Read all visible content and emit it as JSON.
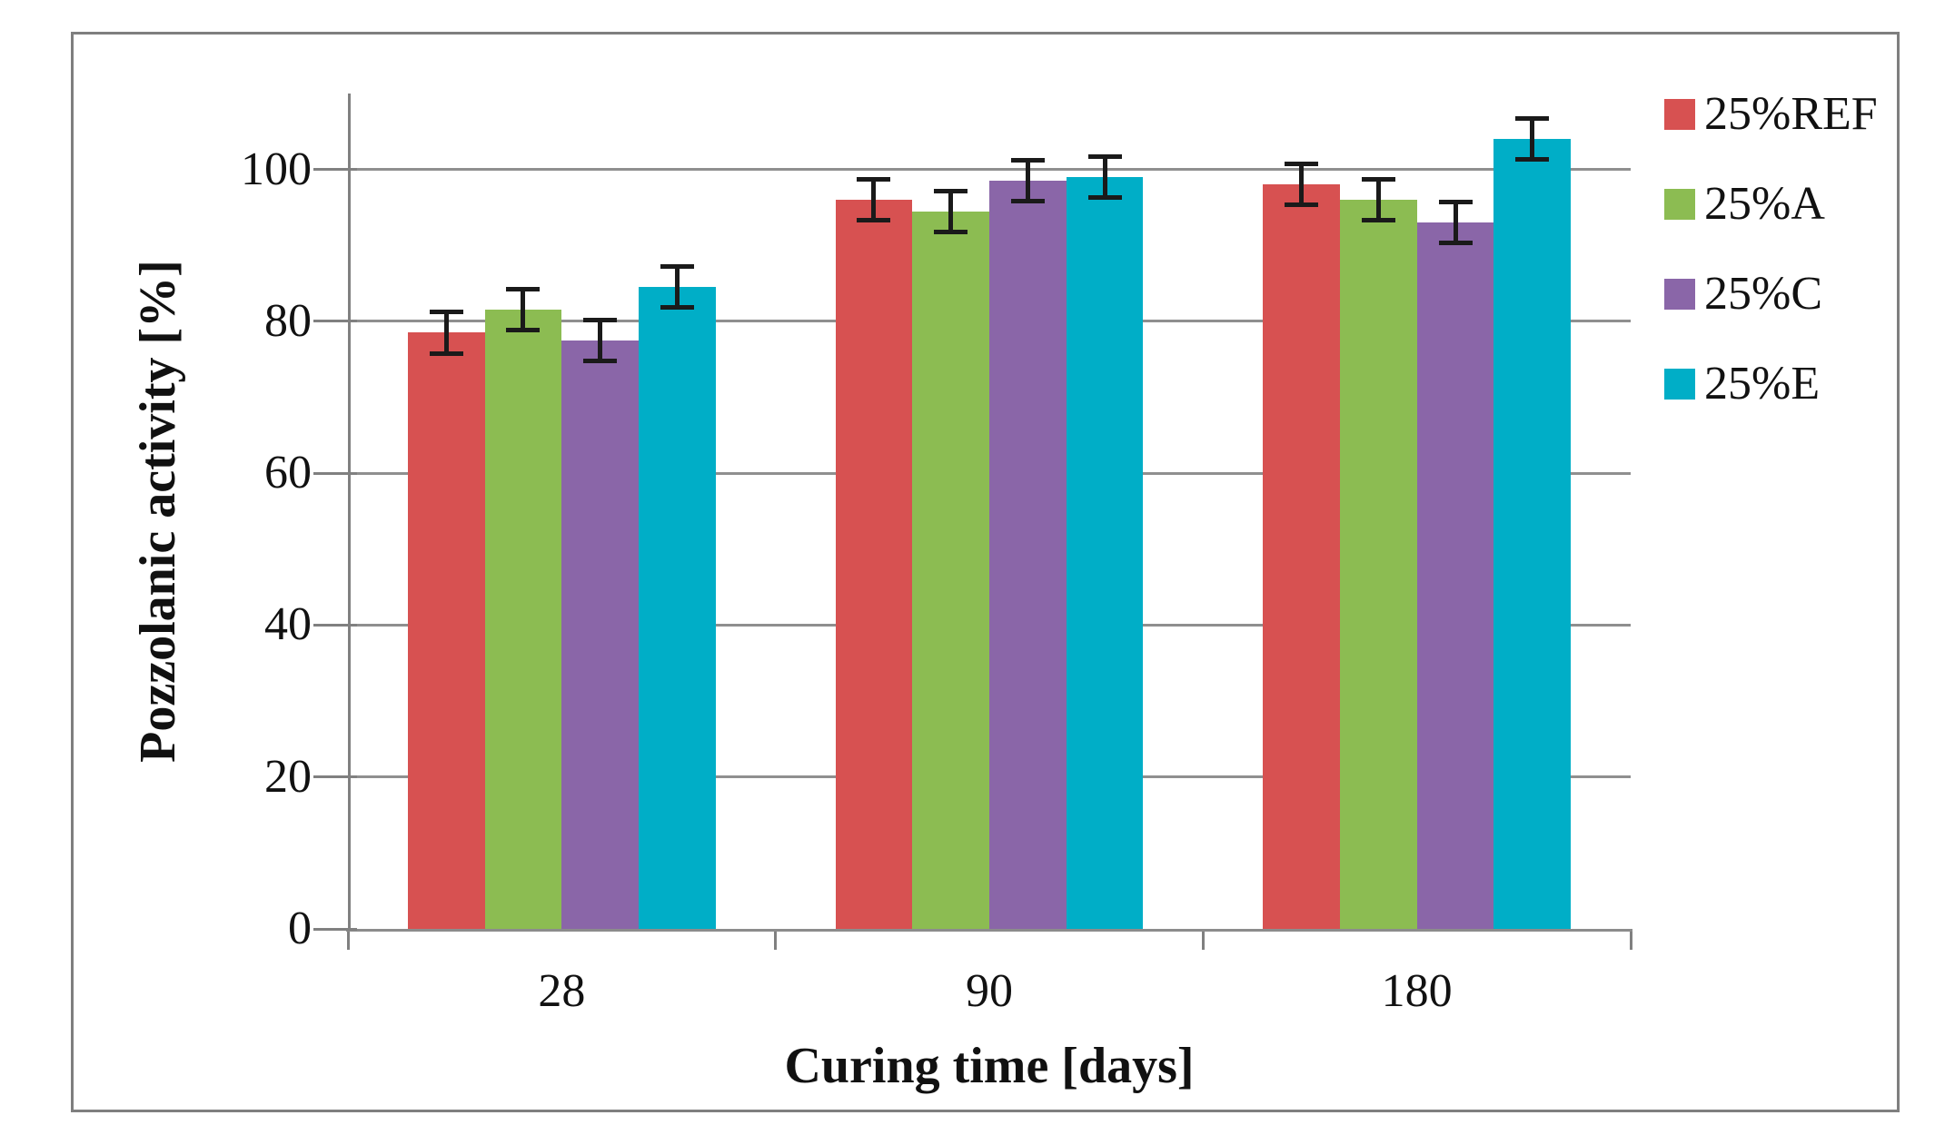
{
  "figure": {
    "kind": "grouped-bar-chart-figure",
    "frame_color": "#7f7f7f",
    "background": "#ffffff"
  },
  "chart_data": {
    "type": "bar",
    "title": "",
    "xlabel": "Curing time [days]",
    "ylabel": "Pozzolanic activity [%]",
    "categories": [
      "28",
      "90",
      "180"
    ],
    "series": [
      {
        "name": "25%REF",
        "color": "#d75151",
        "values": [
          78.5,
          96.0,
          98.0
        ],
        "errors": [
          3.0,
          3.0,
          3.0
        ]
      },
      {
        "name": "25%A",
        "color": "#8cbc52",
        "values": [
          81.5,
          94.5,
          96.0
        ],
        "errors": [
          3.0,
          3.0,
          3.0
        ]
      },
      {
        "name": "25%C",
        "color": "#8a66a8",
        "values": [
          77.5,
          98.5,
          93.0
        ],
        "errors": [
          3.0,
          3.0,
          3.0
        ]
      },
      {
        "name": "25%E",
        "color": "#00aec7",
        "values": [
          84.5,
          99.0,
          104.0
        ],
        "errors": [
          3.0,
          3.0,
          3.0
        ]
      }
    ],
    "yticks": [
      0,
      20,
      40,
      60,
      80,
      100
    ],
    "ylim": [
      0,
      110
    ],
    "grid": "horizontal",
    "error_bars": true,
    "legend_position": "right-top",
    "axis_color": "#808080",
    "gridline_color": "#8f8f8f",
    "error_bar_color": "#1a1a1a"
  }
}
